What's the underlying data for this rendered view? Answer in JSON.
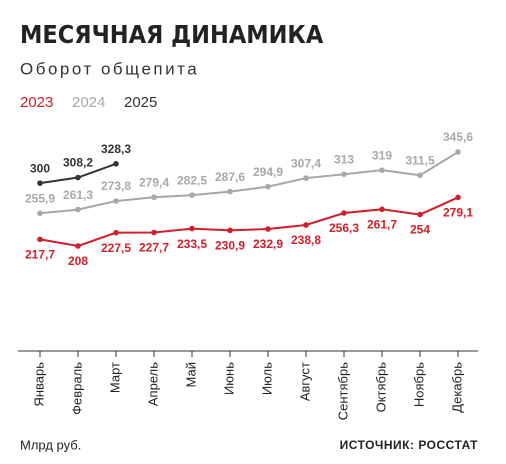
{
  "chart_data": {
    "type": "line",
    "title": "МЕСЯЧНАЯ ДИНАМИКА",
    "subtitle": "Оборот общепита",
    "y_label": "Млрд руб.",
    "source": "ИСТОЧНИК: РОССТАТ",
    "categories": [
      "Январь",
      "Февраль",
      "Март",
      "Апрель",
      "Май",
      "Июнь",
      "Июль",
      "Август",
      "Сентябрь",
      "Октябрь",
      "Ноябрь",
      "Декабрь"
    ],
    "series": [
      {
        "name": "2023",
        "color": "#d01f2a",
        "values": [
          217.7,
          208,
          227.5,
          227.7,
          233.5,
          230.9,
          232.9,
          238.8,
          256.3,
          261.7,
          254,
          279.1
        ],
        "value_labels": [
          "217,7",
          "208",
          "227,5",
          "227,7",
          "233,5",
          "230,9",
          "232,9",
          "238,8",
          "256,3",
          "261,7",
          "254",
          "279,1"
        ]
      },
      {
        "name": "2024",
        "color": "#a8a8a8",
        "values": [
          255.9,
          261.3,
          273.8,
          279.4,
          282.5,
          287.6,
          294.9,
          307.4,
          313,
          319,
          311.5,
          345.6
        ],
        "value_labels": [
          "255,9",
          "261,3",
          "273,8",
          "279,4",
          "282,5",
          "287,6",
          "294,9",
          "307,4",
          "313",
          "319",
          "311,5",
          "345,6"
        ]
      },
      {
        "name": "2025",
        "color": "#333333",
        "values": [
          300,
          308.2,
          328.3,
          null,
          null,
          null,
          null,
          null,
          null,
          null,
          null,
          null
        ],
        "value_labels": [
          "300",
          "308,2",
          "328,3",
          null,
          null,
          null,
          null,
          null,
          null,
          null,
          null,
          null
        ]
      }
    ]
  }
}
